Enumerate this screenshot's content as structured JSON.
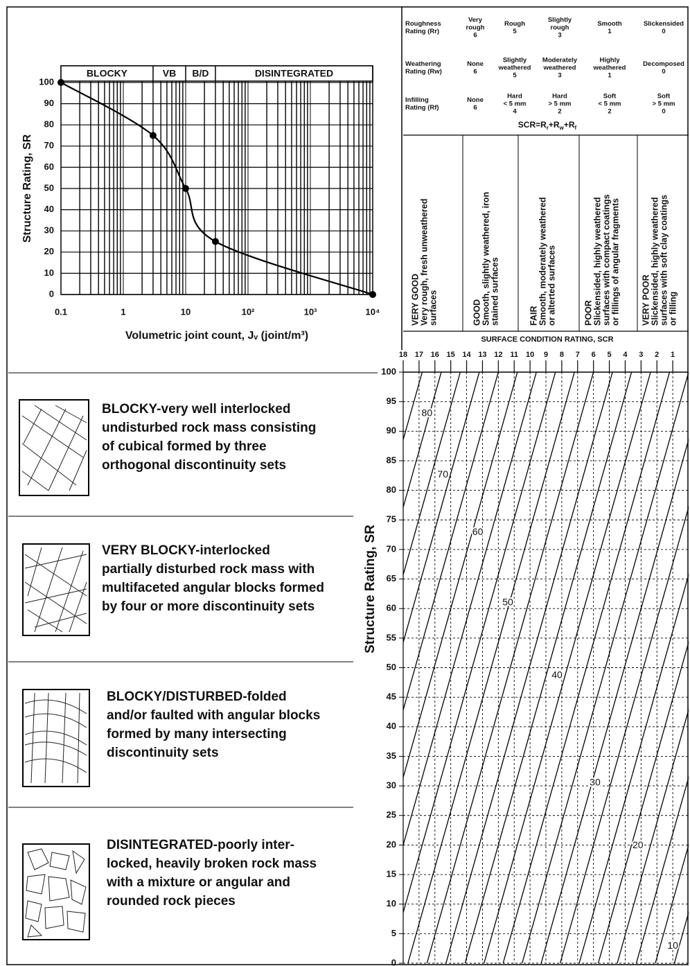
{
  "chart_data": [
    {
      "type": "line",
      "ylabel": "Structure Rating, SR",
      "xlabel": "Volumetric joint count, Jᵥ (joint/m³)",
      "xscale": "log",
      "xlim": [
        0.1,
        10000
      ],
      "ylim": [
        0,
        100
      ],
      "xticks": [
        0.1,
        1,
        10,
        {
          "value": 100,
          "label": "10²"
        },
        {
          "value": 1000,
          "label": "10³"
        },
        {
          "value": 10000,
          "label": "10⁴"
        }
      ],
      "yticks": [
        0,
        10,
        20,
        30,
        40,
        50,
        60,
        70,
        80,
        90,
        100
      ],
      "grid": true,
      "zones": [
        {
          "label": "BLOCKY",
          "from": 0.1,
          "to": 3
        },
        {
          "label": "VB",
          "from": 3,
          "to": 10
        },
        {
          "label": "B/D",
          "from": 10,
          "to": 30
        },
        {
          "label": "DISINTEGRATED",
          "from": 30,
          "to": 10000
        }
      ],
      "series": [
        {
          "color": "#000000",
          "x": [
            0.1,
            3,
            10,
            30,
            10000
          ],
          "values": [
            100,
            75,
            50,
            25,
            0
          ]
        }
      ]
    },
    {
      "type": "contour",
      "title": "SURFACE CONDITION RATING, SCR",
      "ylabel": "Structure Rating, SR",
      "xlim": [
        18,
        0
      ],
      "ylim": [
        0,
        100
      ],
      "xticks": [
        18,
        17,
        16,
        15,
        14,
        13,
        12,
        11,
        10,
        9,
        8,
        7,
        6,
        5,
        4,
        3,
        2,
        1
      ],
      "yticks": [
        0,
        5,
        10,
        15,
        20,
        25,
        30,
        35,
        40,
        45,
        50,
        55,
        60,
        65,
        70,
        75,
        80,
        85,
        90,
        95,
        100
      ],
      "grid": true,
      "lines": [
        {
          "scr0": 28.5,
          "scr100": 18
        },
        {
          "scr0": 27.3,
          "scr100": 16.8
        },
        {
          "scr0": 26.1,
          "scr100": 15.6
        },
        {
          "scr0": 24.9,
          "scr100": 14.4
        },
        {
          "scr0": 23.7,
          "scr100": 13.2
        },
        {
          "scr0": 22.5,
          "scr100": 12
        },
        {
          "scr0": 21.3,
          "scr100": 10.8
        },
        {
          "scr0": 20.1,
          "scr100": 9.6
        },
        {
          "scr0": 18.9,
          "scr100": 8.4
        },
        {
          "scr0": 17.7,
          "scr100": 7.2
        },
        {
          "scr0": 16.5,
          "scr100": 6
        },
        {
          "scr0": 15.3,
          "scr100": 4.8
        },
        {
          "scr0": 14.1,
          "scr100": 3.6
        },
        {
          "scr0": 12.9,
          "scr100": 2.4
        },
        {
          "scr0": 11.7,
          "scr100": 1.2
        },
        {
          "scr0": 10.5,
          "scr100": 0
        },
        {
          "scr0": 9.3,
          "scr100": -1.2
        },
        {
          "scr0": 8.1,
          "scr100": -2.4
        },
        {
          "scr0": 6.9,
          "scr100": -3.6
        },
        {
          "scr0": 5.7,
          "scr100": -4.8
        },
        {
          "scr0": 4.5,
          "scr100": -6
        },
        {
          "scr0": 3.3,
          "scr100": -7.2
        },
        {
          "scr0": 2.1,
          "scr100": -8.4
        },
        {
          "scr0": 0.9,
          "scr100": -9.6
        }
      ],
      "contour_labels": [
        {
          "value": 80,
          "scr": 16.5,
          "sr": 93
        },
        {
          "value": 70,
          "scr": 15.5,
          "sr": 82.6
        },
        {
          "value": 60,
          "scr": 13.3,
          "sr": 72.9
        },
        {
          "value": 50,
          "scr": 11.4,
          "sr": 61
        },
        {
          "value": 40,
          "scr": 8.3,
          "sr": 48.7
        },
        {
          "value": 30,
          "scr": 5.9,
          "sr": 30.5
        },
        {
          "value": 20,
          "scr": 3.2,
          "sr": 19.9
        },
        {
          "value": 10,
          "scr": 1,
          "sr": 2.9
        }
      ]
    }
  ],
  "rating_table": {
    "rows": [
      {
        "label": [
          "Roughness",
          "Rating (Rr)"
        ],
        "cells": [
          {
            "text": [
              "Very",
              "rough"
            ],
            "rating": 6
          },
          {
            "text": [
              "Rough"
            ],
            "rating": 5
          },
          {
            "text": [
              "Slightly",
              "rough"
            ],
            "rating": 3
          },
          {
            "text": [
              "Smooth"
            ],
            "rating": 1
          },
          {
            "text": [
              "Slickensided"
            ],
            "rating": 0
          }
        ]
      },
      {
        "label": [
          "Weathering",
          "Rating (Rw)"
        ],
        "cells": [
          {
            "text": [
              "None"
            ],
            "rating": 6
          },
          {
            "text": [
              "Slightly",
              "weathered"
            ],
            "rating": 5
          },
          {
            "text": [
              "Moderately",
              "weathered"
            ],
            "rating": 3
          },
          {
            "text": [
              "Highly",
              "weathered"
            ],
            "rating": 1
          },
          {
            "text": [
              "Decomposed"
            ],
            "rating": 0
          }
        ]
      },
      {
        "label": [
          "Infilling",
          "Rating (Rf)"
        ],
        "cells": [
          {
            "text": [
              "None"
            ],
            "rating": 6
          },
          {
            "text": [
              "Hard",
              "< 5 mm"
            ],
            "rating": 4
          },
          {
            "text": [
              "Hard",
              "> 5 mm"
            ],
            "rating": 2
          },
          {
            "text": [
              "Soft",
              "< 5 mm"
            ],
            "rating": 2
          },
          {
            "text": [
              "Soft",
              "> 5 mm"
            ],
            "rating": 0
          }
        ]
      }
    ],
    "formula": [
      "SCR=R",
      "r",
      "+R",
      "w",
      "+R",
      "f"
    ]
  },
  "surface_conditions": [
    {
      "heading": "VERY GOOD",
      "lines": [
        "Very rough, fresh unweathered",
        "surfaces"
      ]
    },
    {
      "heading": "GOOD",
      "lines": [
        "Smooth, slightly weathered, iron",
        "stained surfaces"
      ]
    },
    {
      "heading": "FAIR",
      "lines": [
        "Smooth, moderately weathered",
        "or alterted surfaces"
      ]
    },
    {
      "heading": "POOR",
      "lines": [
        "Slickensided, highly weathered",
        "surfaces with compact coatings",
        "or fillings of angular fragments"
      ]
    },
    {
      "heading": "VERY POOR",
      "lines": [
        "Slickensided, highly weathered",
        "surfaces with soft clay coatings",
        "or filling"
      ]
    }
  ],
  "structures": [
    {
      "lines": [
        "BLOCKY-very well interlocked",
        "undisturbed rock mass consisting",
        "of cubical formed by three",
        "orthogonal discontinuity sets"
      ]
    },
    {
      "lines": [
        "VERY BLOCKY-interlocked",
        "partially disturbed rock mass with",
        "multifaceted angular blocks formed",
        "by four or more discontinuity sets"
      ]
    },
    {
      "lines": [
        "BLOCKY/DISTURBED-folded",
        "and/or faulted with angular blocks",
        "formed by many intersecting",
        "discontinuity sets"
      ]
    },
    {
      "lines": [
        "DISINTEGRATED-poorly inter-",
        "locked, heavily broken rock mass",
        "with a mixture or angular and",
        "rounded rock pieces"
      ]
    }
  ]
}
